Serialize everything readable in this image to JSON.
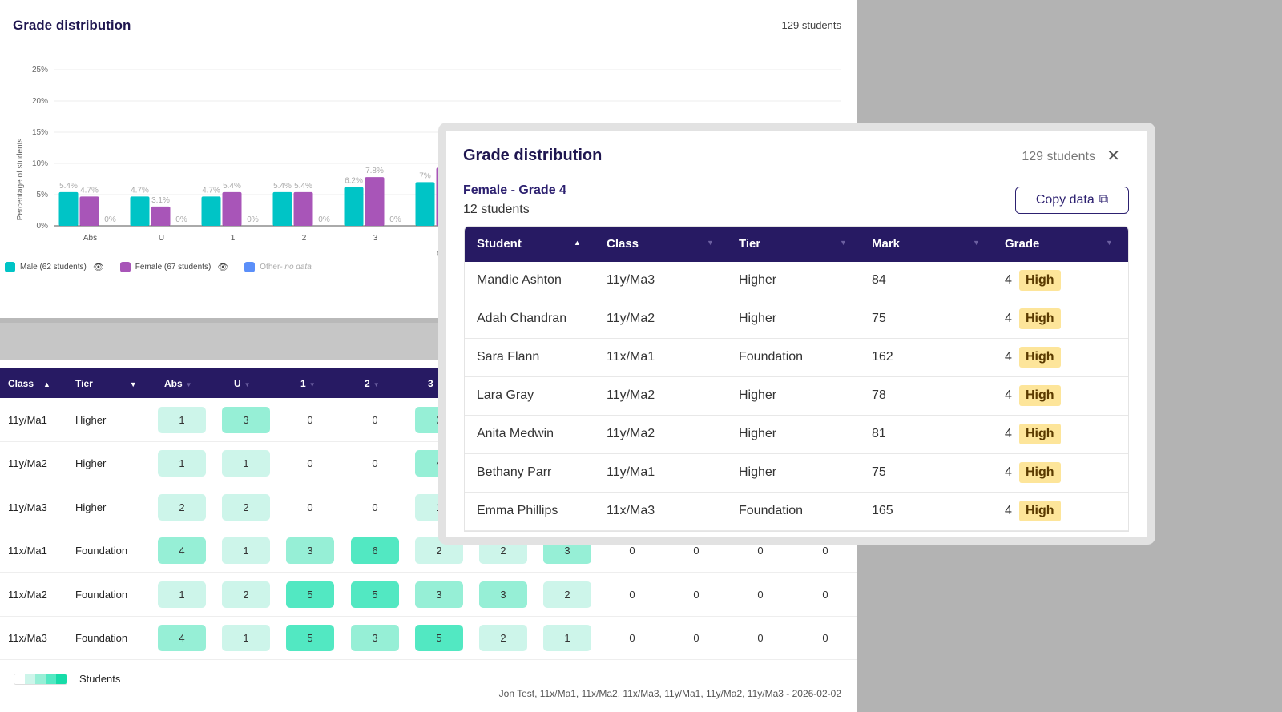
{
  "page": {
    "title": "Grade distribution",
    "count": "129 students"
  },
  "chart_data": {
    "type": "bar",
    "ylabel": "Percentage of students",
    "xlabel": "Grade",
    "ylim": [
      0,
      25
    ],
    "yticks": [
      "0%",
      "5%",
      "10%",
      "15%",
      "20%",
      "25%"
    ],
    "categories": [
      "Abs",
      "U",
      "1",
      "2",
      "3",
      "4"
    ],
    "grid": true,
    "series": [
      {
        "name": "Male (62 students)",
        "color": "#00c4c6",
        "values": [
          5.4,
          4.7,
          4.7,
          5.4,
          6.2,
          7
        ]
      },
      {
        "name": "Female (67 students)",
        "color": "#a855b8",
        "values": [
          4.7,
          3.1,
          5.4,
          5.4,
          7.8,
          9.3
        ]
      },
      {
        "name": "Other",
        "color": "#5b8ff9",
        "values": [
          0,
          0,
          0,
          0,
          0,
          0
        ]
      }
    ],
    "labels": [
      [
        "5.4%",
        "4.7%",
        "4.7%",
        "5.4%",
        "6.2%",
        "7%"
      ],
      [
        "4.7%",
        "3.1%",
        "5.4%",
        "5.4%",
        "7.8%",
        "9."
      ],
      [
        "0%",
        "0%",
        "0%",
        "0%",
        "0%",
        ""
      ]
    ]
  },
  "legend": [
    {
      "label": "Male (62 students)",
      "color": "#00c4c6",
      "eye": true
    },
    {
      "label": "Female (67 students)",
      "color": "#a855b8",
      "eye": true
    },
    {
      "label": "Other",
      "note": "- no data",
      "color": "#5b8ff9",
      "eye": false
    }
  ],
  "table": {
    "headers": [
      "Class",
      "Tier",
      "Abs",
      "U",
      "1",
      "2",
      "3"
    ],
    "rows": [
      {
        "class": "11y/Ma1",
        "tier": "Higher",
        "cells": [
          "1",
          "3",
          "0",
          "0",
          "3",
          "",
          "",
          "",
          "",
          "",
          ""
        ]
      },
      {
        "class": "11y/Ma2",
        "tier": "Higher",
        "cells": [
          "1",
          "1",
          "0",
          "0",
          "4",
          "",
          "",
          "",
          "",
          "",
          ""
        ]
      },
      {
        "class": "11y/Ma3",
        "tier": "Higher",
        "cells": [
          "2",
          "2",
          "0",
          "0",
          "1",
          "",
          "",
          "",
          "",
          "",
          ""
        ]
      },
      {
        "class": "11x/Ma1",
        "tier": "Foundation",
        "cells": [
          "4",
          "1",
          "3",
          "6",
          "2",
          "2",
          "3",
          "0",
          "0",
          "0",
          "0"
        ]
      },
      {
        "class": "11x/Ma2",
        "tier": "Foundation",
        "cells": [
          "1",
          "2",
          "5",
          "5",
          "3",
          "3",
          "2",
          "0",
          "0",
          "0",
          "0"
        ]
      },
      {
        "class": "11x/Ma3",
        "tier": "Foundation",
        "cells": [
          "4",
          "1",
          "5",
          "3",
          "5",
          "2",
          "1",
          "0",
          "0",
          "0",
          "0"
        ]
      }
    ],
    "heat_colors": [
      "#cdf5ea",
      "#96efd6",
      "#52e8c2"
    ]
  },
  "key": {
    "label": "Students"
  },
  "footer": "Jon Test, 11x/Ma1, 11x/Ma2, 11x/Ma3, 11y/Ma1, 11y/Ma2, 11y/Ma3 - 2026-02-02",
  "modal": {
    "title": "Grade distribution",
    "count": "129 students",
    "subtitle": "Female - Grade 4",
    "subcount": "12 students",
    "copy_label": "Copy data",
    "headers": [
      "Student",
      "Class",
      "Tier",
      "Mark",
      "Grade"
    ],
    "rows": [
      {
        "student": "Mandie Ashton",
        "class": "11y/Ma3",
        "tier": "Higher",
        "mark": "84",
        "grade": "4",
        "band": "High"
      },
      {
        "student": "Adah Chandran",
        "class": "11y/Ma2",
        "tier": "Higher",
        "mark": "75",
        "grade": "4",
        "band": "High"
      },
      {
        "student": "Sara Flann",
        "class": "11x/Ma1",
        "tier": "Foundation",
        "mark": "162",
        "grade": "4",
        "band": "High"
      },
      {
        "student": "Lara Gray",
        "class": "11y/Ma2",
        "tier": "Higher",
        "mark": "78",
        "grade": "4",
        "band": "High"
      },
      {
        "student": "Anita Medwin",
        "class": "11y/Ma2",
        "tier": "Higher",
        "mark": "81",
        "grade": "4",
        "band": "High"
      },
      {
        "student": "Bethany Parr",
        "class": "11y/Ma1",
        "tier": "Higher",
        "mark": "75",
        "grade": "4",
        "band": "High"
      },
      {
        "student": "Emma Phillips",
        "class": "11x/Ma3",
        "tier": "Foundation",
        "mark": "165",
        "grade": "4",
        "band": "High"
      }
    ]
  }
}
